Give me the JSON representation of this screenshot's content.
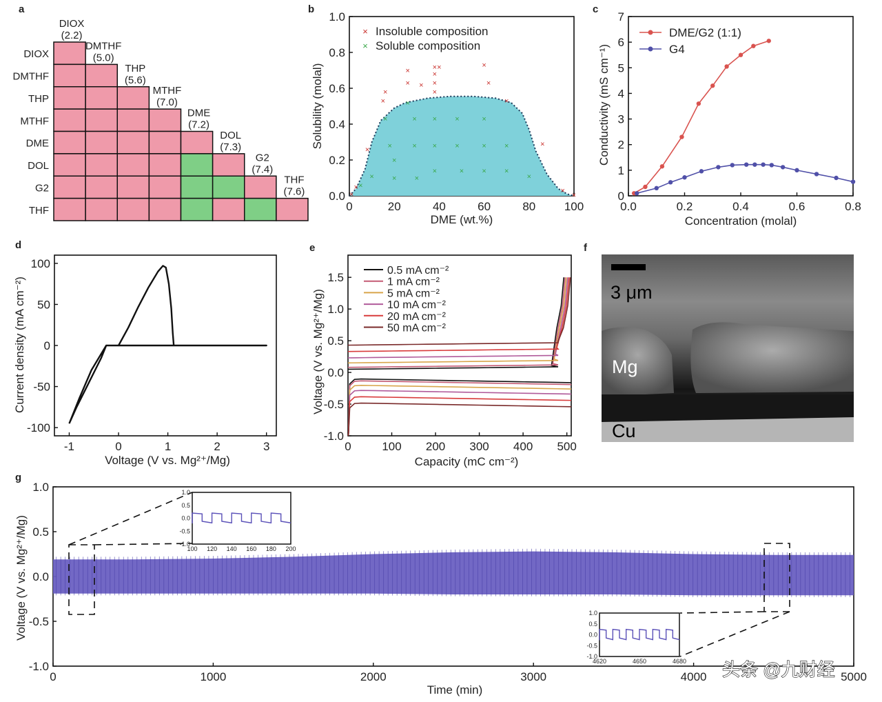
{
  "figure": {
    "panel_labels": {
      "a": "a",
      "b": "b",
      "c": "c",
      "d": "d",
      "e": "e",
      "f": "f",
      "g": "g"
    },
    "watermark": "头条 @九财经"
  },
  "colors": {
    "pink": "#ef9aaa",
    "green": "#7fcf86",
    "teal": "#7fd1da",
    "red": "#d9534f",
    "blue": "#5050a8",
    "trace": "#6a60c2"
  },
  "chart_data": [
    {
      "panel": "a",
      "type": "heatmap",
      "rows": [
        "DIOX",
        "DMTHF",
        "THP",
        "MTHF",
        "DME",
        "DOL",
        "G2",
        "THF"
      ],
      "columns": [
        {
          "name": "DIOX",
          "value": "(2.2)"
        },
        {
          "name": "DMTHF",
          "value": "(5.0)"
        },
        {
          "name": "THP",
          "value": "(5.6)"
        },
        {
          "name": "MTHF",
          "value": "(7.0)"
        },
        {
          "name": "DME",
          "value": "(7.2)"
        },
        {
          "name": "DOL",
          "value": "(7.3)"
        },
        {
          "name": "G2",
          "value": "(7.4)"
        },
        {
          "name": "THF",
          "value": "(7.6)"
        }
      ],
      "green_cells": [
        [
          5,
          4
        ],
        [
          6,
          4
        ],
        [
          6,
          5
        ],
        [
          7,
          4
        ],
        [
          7,
          6
        ]
      ],
      "other_cells": "pink"
    },
    {
      "panel": "b",
      "type": "scatter",
      "xlabel": "DME (wt.%)",
      "ylabel": "Solubility (molal)",
      "xlim": [
        0,
        100
      ],
      "ylim": [
        0,
        1.0
      ],
      "xticks": [
        "0",
        "20",
        "40",
        "60",
        "80",
        "100"
      ],
      "yticks": [
        "0.0",
        "0.2",
        "0.4",
        "0.6",
        "0.8",
        "1.0"
      ],
      "legend": "top-left",
      "series": [
        {
          "name": "Insoluble composition",
          "points": [
            [
              1,
              0.01
            ],
            [
              3,
              0.05
            ],
            [
              8,
              0.26
            ],
            [
              15,
              0.53
            ],
            [
              16,
              0.58
            ],
            [
              26,
              0.7
            ],
            [
              26,
              0.63
            ],
            [
              32,
              0.62
            ],
            [
              38,
              0.72
            ],
            [
              38,
              0.68
            ],
            [
              38,
              0.63
            ],
            [
              38,
              0.58
            ],
            [
              40,
              0.72
            ],
            [
              60,
              0.73
            ],
            [
              62,
              0.63
            ],
            [
              70,
              0.53
            ],
            [
              86,
              0.29
            ],
            [
              95,
              0.03
            ],
            [
              100,
              0.005
            ]
          ]
        },
        {
          "name": "Soluble composition",
          "points": [
            [
              5,
              0.06
            ],
            [
              10,
              0.11
            ],
            [
              16,
              0.43
            ],
            [
              18,
              0.28
            ],
            [
              20,
              0.2
            ],
            [
              20,
              0.1
            ],
            [
              26,
              0.52
            ],
            [
              29,
              0.43
            ],
            [
              29,
              0.28
            ],
            [
              30,
              0.1
            ],
            [
              38,
              0.43
            ],
            [
              38,
              0.28
            ],
            [
              38,
              0.14
            ],
            [
              48,
              0.43
            ],
            [
              48,
              0.28
            ],
            [
              50,
              0.14
            ],
            [
              60,
              0.43
            ],
            [
              60,
              0.28
            ],
            [
              60,
              0.14
            ],
            [
              70,
              0.28
            ],
            [
              70,
              0.14
            ],
            [
              80,
              0.11
            ]
          ]
        }
      ],
      "boundary": [
        [
          0,
          0
        ],
        [
          3,
          0.04
        ],
        [
          7,
          0.15
        ],
        [
          10,
          0.3
        ],
        [
          14,
          0.42
        ],
        [
          20,
          0.49
        ],
        [
          25,
          0.52
        ],
        [
          35,
          0.545
        ],
        [
          45,
          0.555
        ],
        [
          55,
          0.555
        ],
        [
          65,
          0.545
        ],
        [
          72,
          0.52
        ],
        [
          77,
          0.46
        ],
        [
          80,
          0.37
        ],
        [
          83,
          0.25
        ],
        [
          88,
          0.12
        ],
        [
          93,
          0.04
        ],
        [
          97,
          0.01
        ],
        [
          100,
          0
        ]
      ]
    },
    {
      "panel": "c",
      "type": "line",
      "xlabel": "Concentration (molal)",
      "ylabel": "Conductivity (mS cm⁻¹)",
      "xlim": [
        0,
        0.8
      ],
      "ylim": [
        0,
        7
      ],
      "xticks": [
        "0.0",
        "0.2",
        "0.4",
        "0.6",
        "0.8"
      ],
      "yticks": [
        "0",
        "1",
        "2",
        "3",
        "4",
        "5",
        "6",
        "7"
      ],
      "legend": "top-left",
      "series": [
        {
          "name": "DME/G2 (1:1)",
          "color": "#d9534f",
          "x": [
            0.02,
            0.06,
            0.12,
            0.19,
            0.25,
            0.3,
            0.35,
            0.4,
            0.445,
            0.5
          ],
          "y": [
            0.1,
            0.35,
            1.15,
            2.3,
            3.6,
            4.3,
            5.05,
            5.5,
            5.85,
            6.05
          ]
        },
        {
          "name": "G4",
          "color": "#5050a8",
          "x": [
            0.03,
            0.1,
            0.15,
            0.2,
            0.26,
            0.32,
            0.37,
            0.42,
            0.45,
            0.48,
            0.51,
            0.55,
            0.6,
            0.67,
            0.74,
            0.8
          ],
          "y": [
            0.1,
            0.3,
            0.53,
            0.72,
            0.96,
            1.12,
            1.2,
            1.22,
            1.22,
            1.22,
            1.2,
            1.12,
            1.0,
            0.85,
            0.7,
            0.55
          ]
        }
      ]
    },
    {
      "panel": "d",
      "type": "line",
      "xlabel": "Voltage (V vs. Mg²⁺/Mg)",
      "ylabel": "Current density (mA cm⁻²)",
      "xlim": [
        -1,
        3
      ],
      "ylim": [
        -100,
        100
      ],
      "xticks": [
        "-1",
        "0",
        "1",
        "2",
        "3"
      ],
      "yticks": [
        "-100",
        "-50",
        "0",
        "50",
        "100"
      ],
      "series": [
        {
          "name": "",
          "points": [
            [
              -1,
              -95
            ],
            [
              -0.85,
              -75
            ],
            [
              -0.6,
              -45
            ],
            [
              -0.35,
              -15
            ],
            [
              -0.25,
              0
            ],
            [
              0,
              0
            ],
            [
              0.2,
              22
            ],
            [
              0.4,
              47
            ],
            [
              0.6,
              70
            ],
            [
              0.8,
              90
            ],
            [
              0.9,
              97
            ],
            [
              0.96,
              95
            ],
            [
              1.02,
              75
            ],
            [
              1.07,
              45
            ],
            [
              1.1,
              15
            ],
            [
              1.12,
              0
            ],
            [
              3,
              0
            ],
            [
              1.12,
              0
            ],
            [
              -0.25,
              0
            ],
            [
              -0.55,
              -30
            ],
            [
              -0.8,
              -65
            ],
            [
              -1,
              -95
            ]
          ]
        }
      ]
    },
    {
      "panel": "e",
      "type": "line",
      "xlabel": "Capacity (mC cm⁻²)",
      "ylabel": "Voltage (V vs. Mg²⁺/Mg)",
      "xlim": [
        0,
        500
      ],
      "ylim": [
        -1.0,
        1.5
      ],
      "xticks": [
        "0",
        "100",
        "200",
        "300",
        "400",
        "500"
      ],
      "yticks": [
        "-1.0",
        "-0.5",
        "0.0",
        "0.5",
        "1.0",
        "1.5"
      ],
      "legend": "top-left",
      "series": [
        {
          "name": "0.5 mA cm⁻²",
          "color": "#111111",
          "charge": 0.05,
          "discharge": -0.1
        },
        {
          "name": "1 mA cm⁻²",
          "color": "#c45a73",
          "charge": 0.08,
          "discharge": -0.13
        },
        {
          "name": "5 mA cm⁻²",
          "color": "#d8a44a",
          "charge": 0.15,
          "discharge": -0.2
        },
        {
          "name": "10 mA cm⁻²",
          "color": "#b05a9a",
          "charge": 0.23,
          "discharge": -0.28
        },
        {
          "name": "20 mA cm⁻²",
          "color": "#d83a3a",
          "charge": 0.33,
          "discharge": -0.38
        },
        {
          "name": "50 mA cm⁻²",
          "color": "#7a2a2a",
          "charge": 0.43,
          "discharge": -0.48
        }
      ]
    },
    {
      "panel": "g",
      "type": "line",
      "xlabel": "Time (min)",
      "ylabel": "Voltage (V vs. Mg²⁺/Mg)",
      "xlim": [
        0,
        5000
      ],
      "ylim": [
        -1.0,
        1.0
      ],
      "xticks": [
        "0",
        "1000",
        "2000",
        "3000",
        "4000",
        "5000"
      ],
      "yticks": [
        "-1.0",
        "-0.5",
        "0.0",
        "0.5",
        "1.0"
      ],
      "envelope_upper": [
        [
          0,
          0.19
        ],
        [
          500,
          0.19
        ],
        [
          1000,
          0.2
        ],
        [
          1500,
          0.22
        ],
        [
          2000,
          0.25
        ],
        [
          2500,
          0.27
        ],
        [
          3000,
          0.28
        ],
        [
          3500,
          0.27
        ],
        [
          4000,
          0.25
        ],
        [
          4500,
          0.24
        ],
        [
          5000,
          0.24
        ]
      ],
      "envelope_lower": [
        [
          0,
          -0.19
        ],
        [
          500,
          -0.19
        ],
        [
          1000,
          -0.19
        ],
        [
          1500,
          -0.19
        ],
        [
          2000,
          -0.19
        ],
        [
          2500,
          -0.2
        ],
        [
          3000,
          -0.2
        ],
        [
          3500,
          -0.2
        ],
        [
          4000,
          -0.21
        ],
        [
          4500,
          -0.21
        ],
        [
          5000,
          -0.21
        ]
      ],
      "insets": [
        {
          "xlim": [
            100,
            200
          ],
          "ylim": [
            -1.0,
            1.0
          ],
          "xticks": [
            "100",
            "120",
            "140",
            "160",
            "180",
            "200"
          ],
          "yticks": [
            "-1.0",
            "-0.5",
            "0.0",
            "0.5",
            "1.0"
          ],
          "amplitude": 0.2,
          "cycles": 5
        },
        {
          "xlim": [
            4620,
            4680
          ],
          "ylim": [
            -1.0,
            1.0
          ],
          "xticks": [
            "4620",
            "4650",
            "4680"
          ],
          "yticks": [
            "-1.0",
            "-0.5",
            "0.0",
            "0.5",
            "1.0"
          ],
          "amplitude": 0.25,
          "cycles": 6
        }
      ]
    }
  ],
  "image_f": {
    "scale": "3 μm",
    "label_top": "Mg",
    "label_bottom": "Cu"
  }
}
